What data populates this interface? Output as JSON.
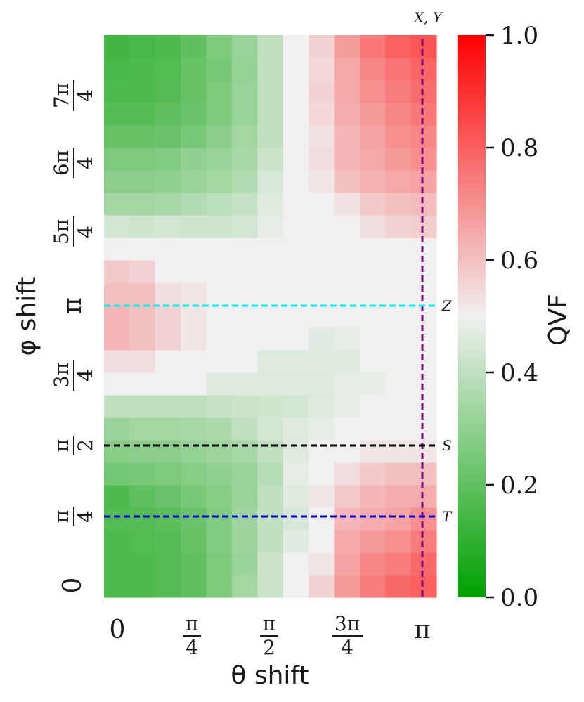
{
  "chart_data": {
    "type": "heatmap",
    "title": "",
    "xlabel": "θ shift",
    "ylabel": "φ shift",
    "colorbar_label": "QVF",
    "colormap": {
      "low": "#00a000",
      "mid": "#f0f0f0",
      "high": "#ff0000"
    },
    "value_range": [
      0.0,
      1.0
    ],
    "x_range": [
      0,
      3.1416
    ],
    "y_range": [
      0,
      6.2832
    ],
    "x_ticks": [
      {
        "value": 0,
        "num": "0",
        "den": ""
      },
      {
        "value": 0.7854,
        "num": "π",
        "den": "4"
      },
      {
        "value": 1.5708,
        "num": "π",
        "den": "2"
      },
      {
        "value": 2.3562,
        "num": "3π",
        "den": "4"
      },
      {
        "value": 3.1416,
        "num": "π",
        "den": ""
      }
    ],
    "y_ticks": [
      {
        "value": 0,
        "num": "0",
        "den": ""
      },
      {
        "value": 0.7854,
        "num": "π",
        "den": "4"
      },
      {
        "value": 1.5708,
        "num": "π",
        "den": "2"
      },
      {
        "value": 2.3562,
        "num": "3π",
        "den": "4"
      },
      {
        "value": 3.1416,
        "num": "π",
        "den": ""
      },
      {
        "value": 3.927,
        "num": "5π",
        "den": "4"
      },
      {
        "value": 4.7124,
        "num": "6π",
        "den": "4"
      },
      {
        "value": 5.4978,
        "num": "7π",
        "den": "4"
      }
    ],
    "colorbar_ticks": [
      "0.0",
      "0.2",
      "0.4",
      "0.6",
      "0.8",
      "1.0"
    ],
    "rows_bottom_to_top": [
      [
        0.16,
        0.16,
        0.18,
        0.2,
        0.26,
        0.34,
        0.42,
        0.5,
        0.56,
        0.68,
        0.74,
        0.78,
        0.8
      ],
      [
        0.16,
        0.16,
        0.18,
        0.2,
        0.26,
        0.32,
        0.42,
        0.5,
        0.52,
        0.66,
        0.72,
        0.74,
        0.78
      ],
      [
        0.16,
        0.17,
        0.18,
        0.21,
        0.27,
        0.33,
        0.4,
        0.47,
        0.5,
        0.65,
        0.68,
        0.7,
        0.74
      ],
      [
        0.17,
        0.18,
        0.19,
        0.22,
        0.27,
        0.33,
        0.4,
        0.45,
        0.5,
        0.62,
        0.64,
        0.66,
        0.7
      ],
      [
        0.16,
        0.2,
        0.22,
        0.25,
        0.28,
        0.32,
        0.4,
        0.46,
        0.52,
        0.58,
        0.62,
        0.64,
        0.64
      ],
      [
        0.24,
        0.25,
        0.26,
        0.28,
        0.3,
        0.32,
        0.38,
        0.48,
        0.5,
        0.54,
        0.58,
        0.6,
        0.6
      ],
      [
        0.28,
        0.29,
        0.29,
        0.31,
        0.33,
        0.35,
        0.4,
        0.46,
        0.5,
        0.5,
        0.52,
        0.52,
        0.52
      ],
      [
        0.32,
        0.34,
        0.34,
        0.35,
        0.36,
        0.4,
        0.44,
        0.46,
        0.48,
        0.5,
        0.5,
        0.5,
        0.5
      ],
      [
        0.4,
        0.4,
        0.4,
        0.4,
        0.41,
        0.42,
        0.43,
        0.44,
        0.46,
        0.48,
        0.5,
        0.5,
        0.5
      ],
      [
        0.5,
        0.5,
        0.5,
        0.5,
        0.46,
        0.46,
        0.46,
        0.46,
        0.46,
        0.48,
        0.48,
        0.5,
        0.5
      ],
      [
        0.54,
        0.54,
        0.5,
        0.5,
        0.5,
        0.5,
        0.46,
        0.46,
        0.46,
        0.46,
        0.5,
        0.5,
        0.5
      ],
      [
        0.62,
        0.6,
        0.56,
        0.52,
        0.5,
        0.5,
        0.5,
        0.5,
        0.47,
        0.48,
        0.5,
        0.5,
        0.5
      ],
      [
        0.62,
        0.6,
        0.56,
        0.52,
        0.5,
        0.5,
        0.5,
        0.5,
        0.5,
        0.5,
        0.5,
        0.5,
        0.5
      ],
      [
        0.6,
        0.6,
        0.54,
        0.52,
        0.5,
        0.5,
        0.5,
        0.5,
        0.5,
        0.5,
        0.5,
        0.5,
        0.5
      ],
      [
        0.58,
        0.56,
        0.5,
        0.5,
        0.5,
        0.5,
        0.5,
        0.5,
        0.5,
        0.5,
        0.5,
        0.5,
        0.5
      ],
      [
        0.5,
        0.5,
        0.5,
        0.5,
        0.5,
        0.5,
        0.5,
        0.5,
        0.5,
        0.5,
        0.5,
        0.5,
        0.5
      ],
      [
        0.44,
        0.43,
        0.44,
        0.43,
        0.43,
        0.44,
        0.48,
        0.5,
        0.5,
        0.5,
        0.54,
        0.56,
        0.57
      ],
      [
        0.34,
        0.34,
        0.35,
        0.37,
        0.39,
        0.41,
        0.46,
        0.5,
        0.5,
        0.53,
        0.58,
        0.6,
        0.61
      ],
      [
        0.29,
        0.29,
        0.3,
        0.32,
        0.34,
        0.37,
        0.45,
        0.5,
        0.52,
        0.6,
        0.63,
        0.65,
        0.66
      ],
      [
        0.26,
        0.26,
        0.27,
        0.3,
        0.32,
        0.35,
        0.42,
        0.5,
        0.54,
        0.62,
        0.65,
        0.68,
        0.7
      ],
      [
        0.21,
        0.21,
        0.22,
        0.25,
        0.29,
        0.34,
        0.4,
        0.5,
        0.53,
        0.62,
        0.66,
        0.7,
        0.72
      ],
      [
        0.18,
        0.18,
        0.2,
        0.22,
        0.26,
        0.32,
        0.4,
        0.5,
        0.55,
        0.64,
        0.68,
        0.72,
        0.75
      ],
      [
        0.16,
        0.16,
        0.18,
        0.21,
        0.26,
        0.32,
        0.4,
        0.5,
        0.56,
        0.65,
        0.7,
        0.74,
        0.77
      ],
      [
        0.15,
        0.16,
        0.17,
        0.21,
        0.25,
        0.31,
        0.4,
        0.5,
        0.55,
        0.65,
        0.72,
        0.76,
        0.79
      ],
      [
        0.14,
        0.15,
        0.16,
        0.2,
        0.26,
        0.32,
        0.4,
        0.5,
        0.56,
        0.67,
        0.75,
        0.8,
        0.82
      ]
    ],
    "lines": [
      {
        "orientation": "vertical",
        "value": 3.1416,
        "label": "X, Y",
        "color": "#800080"
      },
      {
        "orientation": "horizontal",
        "value": 3.1416,
        "label": "Z",
        "color": "#00f0f0"
      },
      {
        "orientation": "horizontal",
        "value": 1.5708,
        "label": "S",
        "color": "#000000"
      },
      {
        "orientation": "horizontal",
        "value": 0.7854,
        "label": "T",
        "color": "#0000e0"
      }
    ]
  }
}
